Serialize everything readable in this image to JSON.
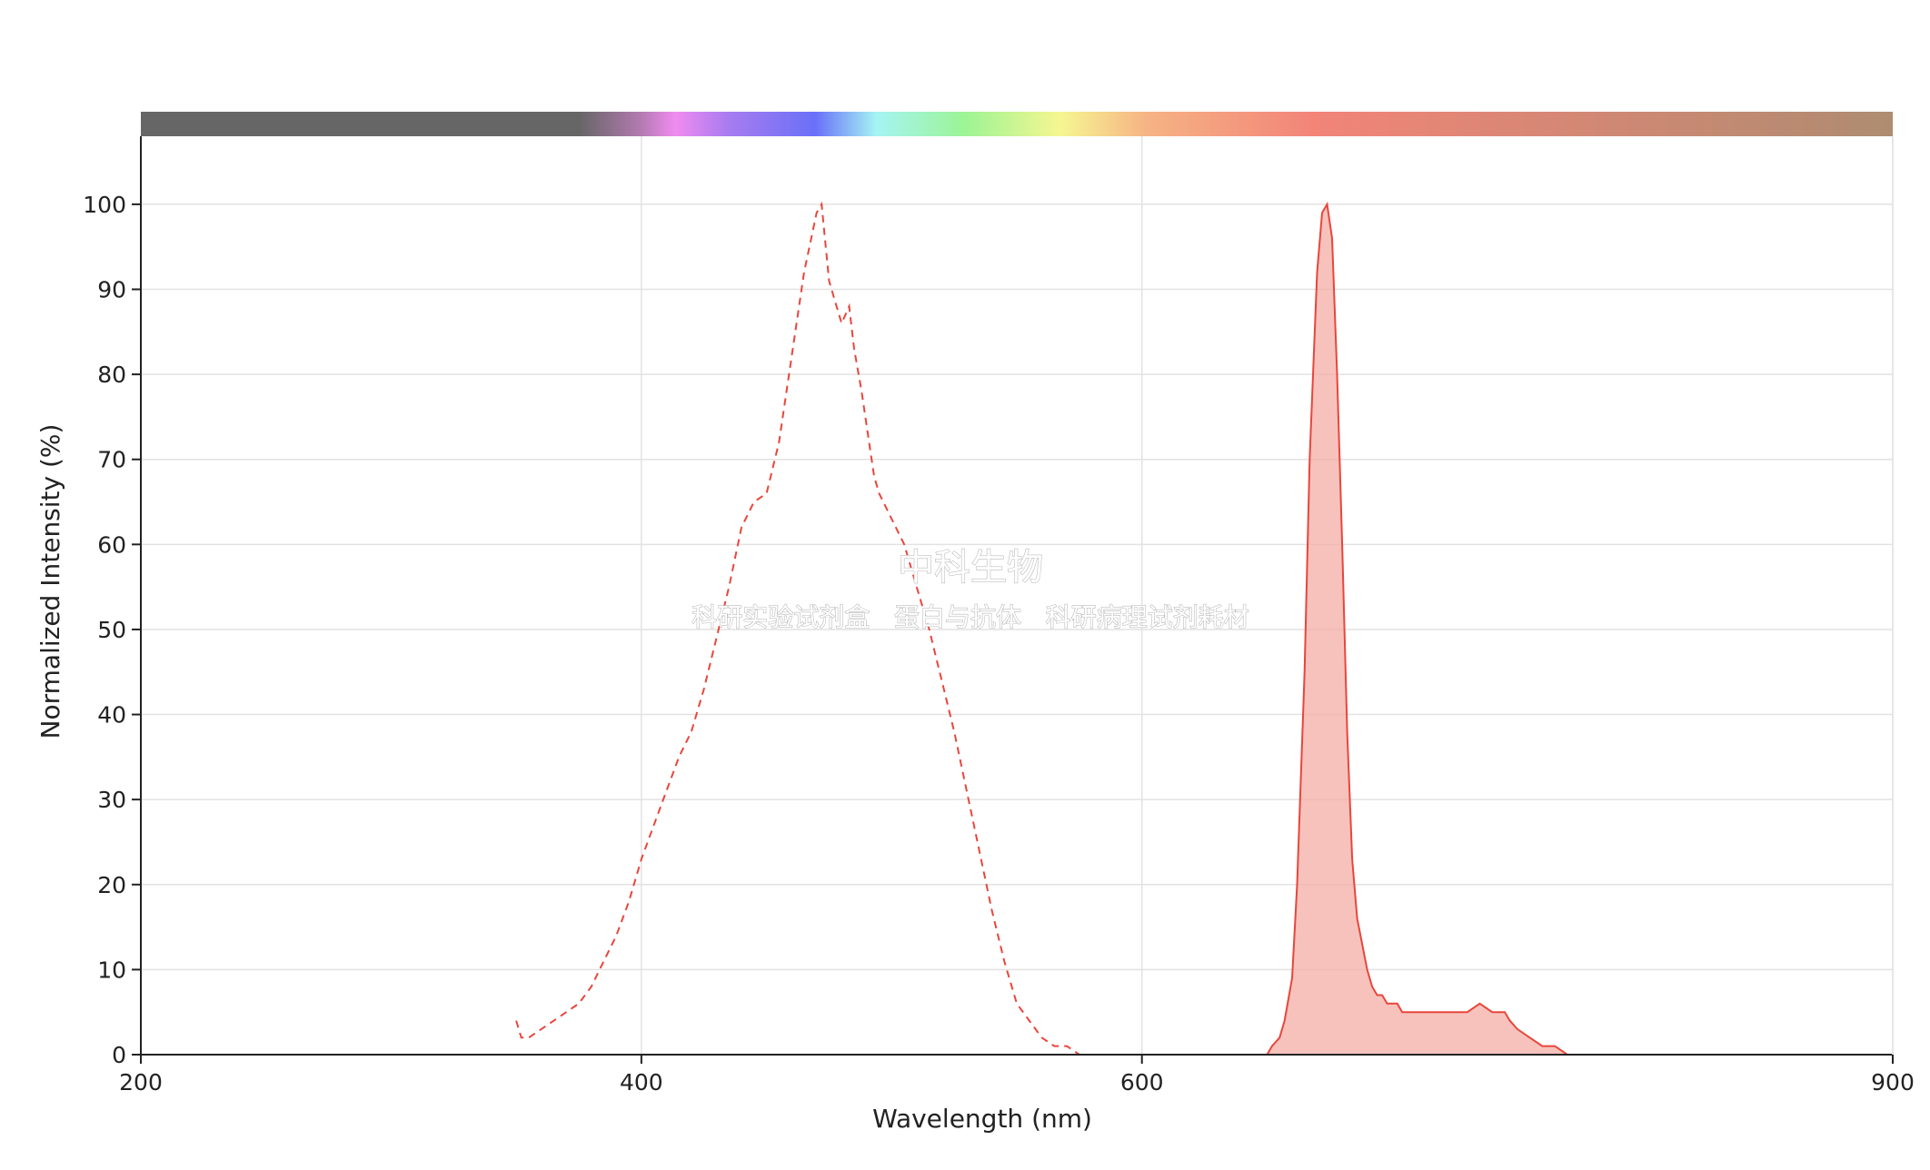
{
  "chart_data": {
    "type": "area",
    "xlabel": "Wavelength (nm)",
    "ylabel": "Normalized Intensity (%)",
    "xlim": [
      200,
      900
    ],
    "ylim": [
      0,
      108
    ],
    "x_ticks": [
      200,
      400,
      600,
      900
    ],
    "y_ticks": [
      0,
      10,
      20,
      30,
      40,
      50,
      60,
      70,
      80,
      90,
      100
    ],
    "grid": true,
    "spectrum_bar": true,
    "watermark": {
      "title": "中科生物",
      "subtitle": "科研实验试剂盒   蛋白与抗体   科研病理试剂耗材"
    },
    "series": [
      {
        "role": "excitation",
        "style": "dashed",
        "color": "#e8463c",
        "x": [
          350,
          352,
          355,
          360,
          365,
          370,
          375,
          380,
          385,
          390,
          395,
          400,
          405,
          410,
          415,
          420,
          425,
          430,
          435,
          440,
          445,
          450,
          455,
          460,
          465,
          470,
          472,
          475,
          477,
          480,
          483,
          485,
          488,
          490,
          493,
          495,
          500,
          505,
          510,
          515,
          520,
          525,
          530,
          535,
          540,
          545,
          550,
          555,
          560,
          565,
          570,
          575,
          580,
          585,
          590,
          595,
          600
        ],
        "y": [
          4,
          2,
          2,
          3,
          4,
          5,
          6,
          8,
          11,
          14,
          18,
          23,
          27,
          31,
          35,
          38,
          43,
          49,
          55,
          62,
          65,
          66,
          72,
          82,
          92,
          99,
          100,
          91,
          89,
          86,
          88,
          83,
          78,
          74,
          68,
          66,
          63,
          60,
          55,
          50,
          44,
          38,
          31,
          24,
          17,
          11,
          6,
          4,
          2,
          1,
          1,
          0,
          0,
          0,
          0,
          0,
          0
        ]
      },
      {
        "role": "emission",
        "style": "filled",
        "color": "#e8463c",
        "fill": "#f6aea6",
        "x": [
          600,
          650,
          652,
          655,
          657,
          660,
          662,
          665,
          667,
          670,
          672,
          674,
          676,
          678,
          680,
          682,
          684,
          686,
          688,
          690,
          692,
          694,
          696,
          698,
          700,
          702,
          704,
          706,
          708,
          710,
          712,
          714,
          716,
          720,
          725,
          730,
          735,
          740,
          743,
          745,
          747,
          750,
          755,
          760,
          765,
          770,
          775,
          780,
          785,
          790,
          800,
          810
        ],
        "y": [
          0,
          0,
          1,
          2,
          4,
          9,
          20,
          45,
          70,
          92,
          99,
          100,
          96,
          80,
          60,
          38,
          23,
          16,
          13,
          10,
          8,
          7,
          7,
          6,
          6,
          6,
          5,
          5,
          5,
          5,
          5,
          5,
          5,
          5,
          5,
          5,
          6,
          5,
          5,
          5,
          4,
          3,
          2,
          1,
          1,
          0,
          0,
          0,
          0,
          0,
          0,
          0
        ]
      }
    ]
  }
}
